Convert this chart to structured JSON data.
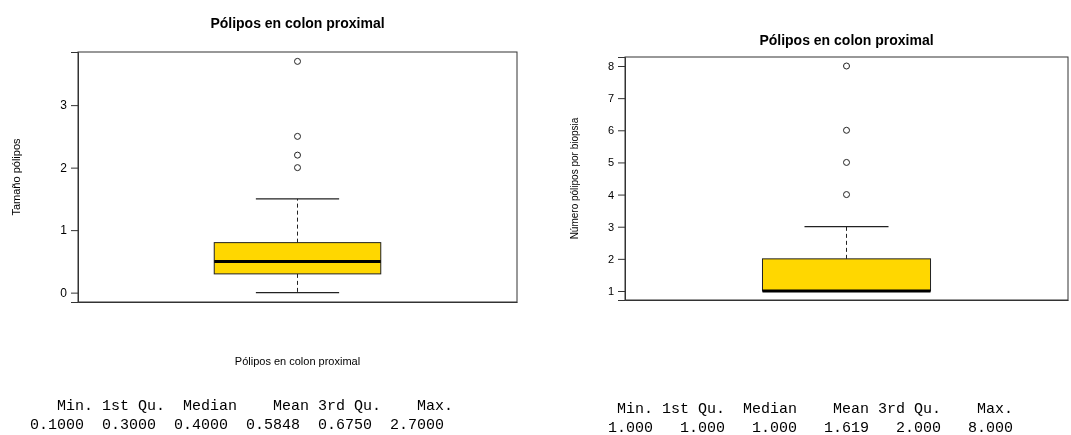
{
  "chart_data": [
    {
      "type": "box",
      "title": "Pólipos en colon proximal",
      "xlabel": "Pólipos en colon proximal",
      "ylabel": "Tamaño pólipos",
      "categories": [
        null
      ],
      "color": "#ffd700",
      "ylim": [
        -0.15,
        3.85
      ],
      "yticks": [
        0,
        1,
        2,
        3
      ],
      "grid": false,
      "boxes": [
        {
          "low": 0,
          "q1": 0.3,
          "median": 0.5,
          "q3": 0.8,
          "high": 1.5,
          "outliers": [
            2.0,
            2.2,
            2.5,
            3.7
          ]
        }
      ],
      "annotations": [
        "   Min. 1st Qu.  Median    Mean 3rd Qu.    Max. ",
        "0.1000  0.3000  0.4000  0.5848  0.6750  2.7000 "
      ]
    },
    {
      "type": "box",
      "title": "Pólipos en colon proximal",
      "ylabel": "Número pólipos por biopsia",
      "categories": [
        null
      ],
      "color": "#ffd700",
      "ylim": [
        0.72,
        8.28
      ],
      "yticks": [
        1,
        2,
        3,
        4,
        5,
        6,
        7,
        8
      ],
      "grid": false,
      "boxes": [
        {
          "low": 1,
          "q1": 1,
          "median": 1,
          "q3": 2,
          "high": 3,
          "outliers": [
            4,
            5,
            6,
            8
          ]
        }
      ],
      "annotations": [
        "   Min. 1st Qu.  Median    Mean 3rd Qu.    Max. ",
        "  1.000   1.000   1.000   1.619   2.000   8.000 "
      ]
    }
  ]
}
